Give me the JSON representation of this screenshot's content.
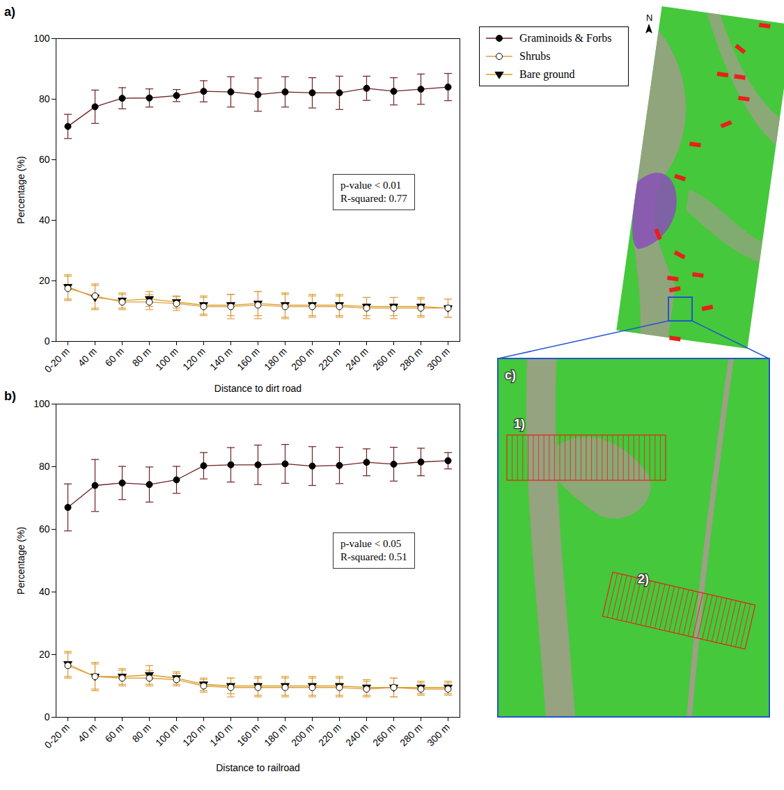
{
  "chart_data": [
    {
      "type": "line",
      "panel_label": "a)",
      "x_label": "Distance to dirt road",
      "y_label": "Percentage (%)",
      "categories": [
        "0-20 m",
        "40 m",
        "60 m",
        "80 m",
        "100 m",
        "120 m",
        "140 m",
        "160 m",
        "180 m",
        "200 m",
        "220 m",
        "240 m",
        "260 m",
        "280 m",
        "300 m"
      ],
      "ylim": [
        0,
        100
      ],
      "yticks": [
        0,
        20,
        40,
        60,
        80,
        100
      ],
      "annotation": [
        "p-value < 0.01",
        "R-squared: 0.77"
      ],
      "legend": "top right",
      "series": [
        {
          "name": "Graminoids & Forbs",
          "color": "#6e1f1f",
          "marker": "circle",
          "values": [
            71,
            77.5,
            80.3,
            80.4,
            81.2,
            82.6,
            82.4,
            81.5,
            82.4,
            82.1,
            82.1,
            83.6,
            82.6,
            83.3,
            84.0
          ],
          "errors": [
            4,
            5.5,
            3.5,
            3,
            2,
            3.5,
            5,
            5.5,
            5,
            5,
            5.5,
            4,
            4.5,
            5,
            4.5
          ]
        },
        {
          "name": "Shrubs",
          "color": "#e39b4a",
          "marker": "open_circle",
          "values": [
            17.5,
            15,
            13,
            13,
            12.5,
            11.5,
            11.5,
            12,
            11.5,
            11.5,
            11.5,
            11,
            11,
            11,
            11
          ],
          "errors": [
            4,
            4,
            2.5,
            2.5,
            2.3,
            3,
            4,
            4.5,
            4,
            3.5,
            3.5,
            3.5,
            3.5,
            3,
            3
          ]
        },
        {
          "name": "Bare ground",
          "color": "#d4a017",
          "marker": "triangle_down",
          "values": [
            18,
            14.5,
            13.5,
            14,
            13,
            12,
            12,
            12.5,
            12,
            12,
            12,
            11.5,
            11.5,
            11.5,
            11
          ],
          "errors": [
            4,
            4,
            2.5,
            2.5,
            2,
            3,
            3.5,
            4,
            4,
            3.5,
            3.5,
            3,
            3,
            3,
            3
          ]
        }
      ]
    },
    {
      "type": "line",
      "panel_label": "b)",
      "x_label": "Distance to railroad",
      "y_label": "Percentage (%)",
      "categories": [
        "0-20 m",
        "40 m",
        "60 m",
        "80 m",
        "100 m",
        "120 m",
        "140 m",
        "160 m",
        "180 m",
        "200 m",
        "220 m",
        "240 m",
        "260 m",
        "280 m",
        "300 m"
      ],
      "ylim": [
        0,
        100
      ],
      "yticks": [
        0,
        20,
        40,
        60,
        80,
        100
      ],
      "annotation": [
        "p-value < 0.05",
        "R-squared: 0.51"
      ],
      "series": [
        {
          "name": "Graminoids & Forbs",
          "color": "#6e1f1f",
          "marker": "circle",
          "values": [
            67,
            74,
            74.8,
            74.3,
            75.8,
            80.3,
            80.6,
            80.6,
            80.9,
            80.2,
            80.4,
            81.4,
            80.8,
            81.5,
            81.9
          ],
          "errors": [
            7.5,
            8.3,
            5.3,
            5.6,
            4.3,
            4.2,
            5.5,
            6.3,
            6.2,
            6.2,
            5.8,
            4.3,
            5.4,
            4.4,
            2.6
          ]
        },
        {
          "name": "Shrubs",
          "color": "#e39b4a",
          "marker": "open_circle",
          "values": [
            16.5,
            13,
            12.5,
            12.5,
            12,
            10,
            9.5,
            9.5,
            9.5,
            9.5,
            9.5,
            9,
            9.5,
            9,
            9
          ],
          "errors": [
            4,
            4,
            2.5,
            2.5,
            2,
            2,
            3,
            3,
            3,
            3,
            3,
            2.5,
            3,
            2,
            2
          ]
        },
        {
          "name": "Bare ground",
          "color": "#d4a017",
          "marker": "triangle_down",
          "values": [
            17,
            13,
            13,
            13.5,
            12.5,
            10.5,
            10,
            10,
            10,
            10,
            10,
            9.5,
            9.5,
            9.5,
            9.5
          ],
          "errors": [
            4,
            4.5,
            2.5,
            3,
            2,
            2,
            2.5,
            3,
            3,
            3,
            3,
            2.5,
            3,
            2,
            2
          ]
        }
      ]
    }
  ],
  "map": {
    "north": "N",
    "panel_label": "c)",
    "transects": [
      "1)",
      "2)"
    ]
  }
}
